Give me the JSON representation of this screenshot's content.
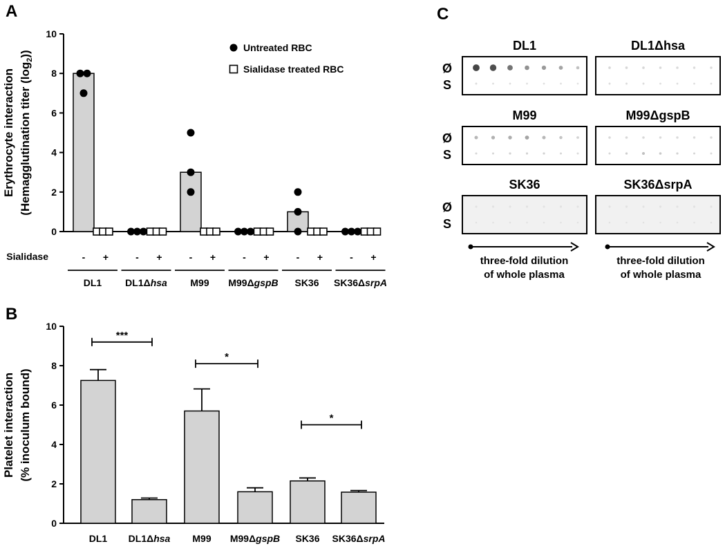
{
  "chart_data": [
    {
      "panel": "A",
      "type": "bar",
      "ylabel_line1": "Erythrocyte interaction",
      "ylabel_line2_prefix": "(Hemagglutination titer (log",
      "ylabel_line2_sub": "2",
      "ylabel_line2_suffix": "))",
      "ylim": [
        0,
        10
      ],
      "yticks": [
        "0",
        "2",
        "4",
        "6",
        "8",
        "10"
      ],
      "treatment_label": "Sialidase",
      "treatment_marks": [
        "-",
        "+"
      ],
      "strains": [
        {
          "label": "DL1",
          "italic": ""
        },
        {
          "label": "DL1Δ",
          "italic": "hsa"
        },
        {
          "label": "M99",
          "italic": ""
        },
        {
          "label": "M99Δ",
          "italic": "gspB"
        },
        {
          "label": "SK36",
          "italic": ""
        },
        {
          "label": "SK36Δ",
          "italic": "srpA"
        }
      ],
      "legend": [
        {
          "name": "Untreated RBC",
          "marker": "filled-circle"
        },
        {
          "name": "Sialidase treated RBC",
          "marker": "open-square"
        }
      ],
      "legend_position": "top-right",
      "series": [
        {
          "name": "Untreated RBC",
          "bar_values": [
            8,
            0,
            3,
            0,
            1,
            0
          ],
          "points": [
            [
              8,
              8,
              7
            ],
            [
              0,
              0,
              0
            ],
            [
              5,
              3,
              2
            ],
            [
              0,
              0,
              0
            ],
            [
              2,
              1,
              0
            ],
            [
              0,
              0,
              0
            ]
          ]
        },
        {
          "name": "Sialidase treated RBC",
          "bar_values": [
            0,
            0,
            0,
            0,
            0,
            0
          ],
          "points": [
            [
              0,
              0,
              0
            ],
            [
              0,
              0,
              0
            ],
            [
              0,
              0,
              0
            ],
            [
              0,
              0,
              0
            ],
            [
              0,
              0,
              0
            ],
            [
              0,
              0,
              0
            ]
          ]
        }
      ]
    },
    {
      "panel": "B",
      "type": "bar",
      "ylabel_line1": "Platelet interaction",
      "ylabel_line2": "(% inoculum bound)",
      "ylim": [
        0,
        10
      ],
      "yticks": [
        "0",
        "2",
        "4",
        "6",
        "8",
        "10"
      ],
      "categories": [
        {
          "label": "DL1",
          "italic": ""
        },
        {
          "label": "DL1Δ",
          "italic": "hsa"
        },
        {
          "label": "M99",
          "italic": ""
        },
        {
          "label": "M99Δ",
          "italic": "gspB"
        },
        {
          "label": "SK36",
          "italic": ""
        },
        {
          "label": "SK36Δ",
          "italic": "srpA"
        }
      ],
      "values": [
        7.25,
        1.2,
        5.7,
        1.6,
        2.15,
        1.58
      ],
      "errors": [
        0.55,
        0.08,
        1.12,
        0.2,
        0.15,
        0.08
      ],
      "significance": [
        {
          "from": 0,
          "to": 1,
          "y": 9.2,
          "label": "***"
        },
        {
          "from": 2,
          "to": 3,
          "y": 8.1,
          "label": "*"
        },
        {
          "from": 4,
          "to": 5,
          "y": 5.0,
          "label": "*"
        }
      ]
    }
  ],
  "panelC": {
    "panel": "C",
    "row_labels": [
      "Ø",
      "S"
    ],
    "blots": [
      {
        "title": "DL1",
        "spots_top": [
          0.85,
          0.8,
          0.6,
          0.45,
          0.4,
          0.35,
          0.2
        ],
        "spots_bottom": [
          0.06,
          0.05,
          0.05,
          0.04,
          0.04,
          0.04,
          0.03
        ]
      },
      {
        "title": "DL1Δhsa",
        "spots_top": [
          0.08,
          0.08,
          0.08,
          0.07,
          0.07,
          0.06,
          0.06
        ],
        "spots_bottom": [
          0.06,
          0.06,
          0.06,
          0.05,
          0.05,
          0.05,
          0.04
        ]
      },
      {
        "title": "M99",
        "spots_top": [
          0.25,
          0.28,
          0.3,
          0.35,
          0.25,
          0.18,
          0.1
        ],
        "spots_bottom": [
          0.08,
          0.08,
          0.1,
          0.1,
          0.1,
          0.08,
          0.06
        ]
      },
      {
        "title": "M99ΔgspB",
        "spots_top": [
          0.07,
          0.07,
          0.07,
          0.06,
          0.06,
          0.06,
          0.05
        ],
        "spots_bottom": [
          0.08,
          0.12,
          0.2,
          0.15,
          0.1,
          0.08,
          0.06
        ]
      },
      {
        "title": "SK36",
        "spots_top": [
          0.02,
          0.02,
          0.02,
          0.02,
          0.02,
          0.02,
          0.02
        ],
        "spots_bottom": [
          0.02,
          0.02,
          0.02,
          0.02,
          0.02,
          0.02,
          0.02
        ]
      },
      {
        "title": "SK36ΔsrpA",
        "spots_top": [
          0.02,
          0.02,
          0.02,
          0.02,
          0.02,
          0.02,
          0.02
        ],
        "spots_bottom": [
          0.02,
          0.02,
          0.02,
          0.02,
          0.02,
          0.02,
          0.02
        ]
      }
    ],
    "dilution_text": [
      "three-fold dilution",
      "of whole plasma"
    ]
  }
}
